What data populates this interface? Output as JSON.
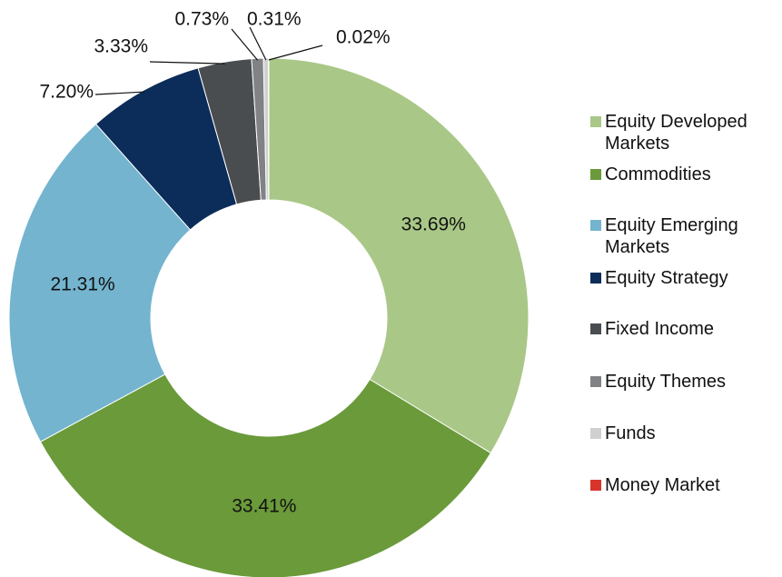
{
  "chart_data": {
    "type": "donut",
    "categories": [
      "Equity Developed Markets",
      "Commodities",
      "Equity Emerging Markets",
      "Equity Strategy",
      "Fixed Income",
      "Equity Themes",
      "Funds",
      "Money Market"
    ],
    "values": [
      33.69,
      33.41,
      21.31,
      7.2,
      3.33,
      0.73,
      0.31,
      0.02
    ],
    "value_labels": [
      "33.69%",
      "33.41%",
      "21.31%",
      "7.20%",
      "3.33%",
      "0.73%",
      "0.31%",
      "0.02%"
    ],
    "colors": [
      "#a9c787",
      "#6a9a3a",
      "#74b4cf",
      "#0c2c5a",
      "#4a4d50",
      "#808285",
      "#d0d0d0",
      "#d9342b"
    ],
    "legend": "right"
  }
}
